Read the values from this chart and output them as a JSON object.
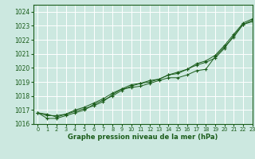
{
  "xlabel": "Graphe pression niveau de la mer (hPa)",
  "bg_color": "#cce8e0",
  "grid_color": "#ffffff",
  "line_color": "#1a5c1a",
  "xlim": [
    -0.5,
    23
  ],
  "ylim": [
    1016.0,
    1024.5
  ],
  "yticks": [
    1016,
    1017,
    1018,
    1019,
    1020,
    1021,
    1022,
    1023,
    1024
  ],
  "xticks": [
    0,
    1,
    2,
    3,
    4,
    5,
    6,
    7,
    8,
    9,
    10,
    11,
    12,
    13,
    14,
    15,
    16,
    17,
    18,
    19,
    20,
    21,
    22,
    23
  ],
  "series": [
    [
      1016.8,
      1016.7,
      1016.5,
      1016.7,
      1016.9,
      1017.1,
      1017.3,
      1017.6,
      1018.1,
      1018.5,
      1018.6,
      1018.7,
      1018.9,
      1019.1,
      1019.3,
      1019.3,
      1019.5,
      1019.8,
      1019.9,
      1020.8,
      1021.5,
      1022.2,
      1023.1,
      1023.3
    ],
    [
      1016.8,
      1016.6,
      1016.6,
      1016.7,
      1017.0,
      1017.2,
      1017.5,
      1017.8,
      1018.2,
      1018.5,
      1018.8,
      1018.9,
      1019.1,
      1019.2,
      1019.5,
      1019.6,
      1019.9,
      1020.2,
      1020.4,
      1020.7,
      1021.4,
      1022.3,
      1023.1,
      1023.4
    ],
    [
      1016.8,
      1016.4,
      1016.4,
      1016.6,
      1016.8,
      1017.0,
      1017.4,
      1017.7,
      1018.0,
      1018.4,
      1018.7,
      1018.9,
      1019.0,
      1019.2,
      1019.5,
      1019.7,
      1019.9,
      1020.3,
      1020.5,
      1020.9,
      1021.6,
      1022.4,
      1023.2,
      1023.5
    ]
  ],
  "marker": "+",
  "ytick_fontsize": 5.5,
  "xtick_fontsize": 4.8,
  "xlabel_fontsize": 6.0
}
